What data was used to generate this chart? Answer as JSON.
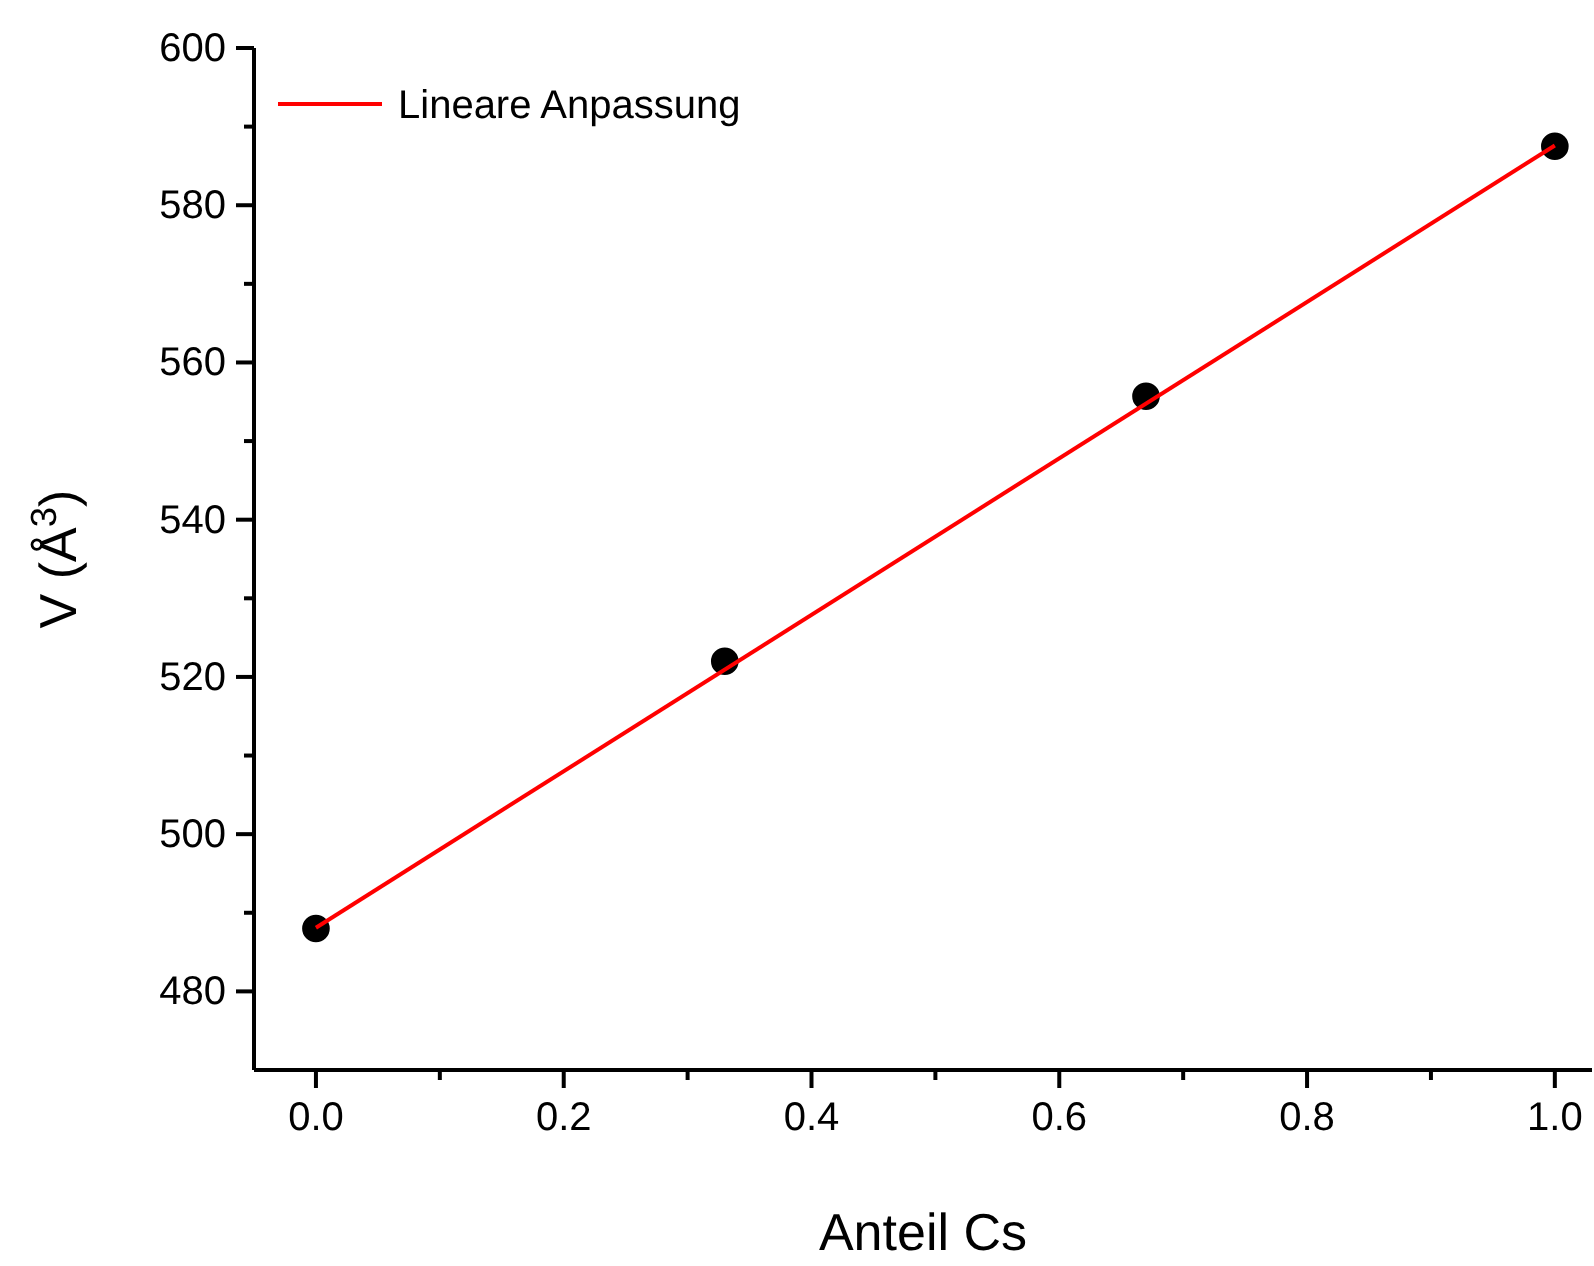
{
  "chart_data": {
    "type": "scatter",
    "xlabel": "Anteil Cs",
    "ylabel": "V (Å$^{3}$)",
    "xlim": [
      -0.05,
      1.03
    ],
    "ylim": [
      470,
      600
    ],
    "xticks": [
      {
        "value": 0,
        "label": "0.0"
      },
      {
        "value": 0.1,
        "label": null
      },
      {
        "value": 0.2,
        "label": "0.2"
      },
      {
        "value": 0.3,
        "label": null
      },
      {
        "value": 0.4,
        "label": "0.4"
      },
      {
        "value": 0.5,
        "label": null
      },
      {
        "value": 0.6,
        "label": "0.6"
      },
      {
        "value": 0.7,
        "label": null
      },
      {
        "value": 0.8,
        "label": "0.8"
      },
      {
        "value": 0.9,
        "label": null
      },
      {
        "value": 1.0,
        "label": "1.0"
      }
    ],
    "yticks": [
      480,
      {
        "value": 490,
        "label": null
      },
      500,
      {
        "value": 510,
        "label": null
      },
      520,
      {
        "value": 530,
        "label": null
      },
      540,
      {
        "value": 550,
        "label": null
      },
      560,
      {
        "value": 570,
        "label": null
      },
      580,
      {
        "value": 590,
        "label": null
      },
      600
    ],
    "x": [
      0,
      0.33,
      0.67,
      1.0
    ],
    "series": [
      {
        "color": "#000000",
        "marker": "circle",
        "values": [
          488,
          522,
          555.7,
          587.5
        ]
      },
      {
        "type": "line",
        "name": "Lineare Anpassung",
        "color": "#ff0000",
        "marker": "none",
        "x": [
          0,
          1.0
        ],
        "values": [
          488.1,
          587.6
        ]
      }
    ],
    "legend": "top left",
    "grid": false
  }
}
